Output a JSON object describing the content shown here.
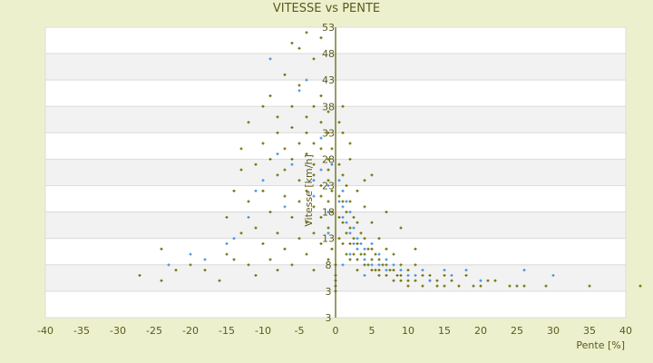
{
  "chart_data": {
    "type": "scatter",
    "title": "VITESSE vs PENTE",
    "xlabel": "Pente [%]",
    "ylabel": "Vitesse [km/h]",
    "xlim": [
      -40,
      40
    ],
    "ylim": [
      -2,
      53
    ],
    "x_ticks": [
      "-40",
      "-35",
      "-30",
      "-25",
      "-20",
      "-15",
      "-10",
      "-5",
      "0",
      "5",
      "10",
      "15",
      "20",
      "25",
      "30",
      "35",
      "40"
    ],
    "y_ticks": [
      "53",
      "48",
      "43",
      "38",
      "33",
      "28",
      "23",
      "18",
      "13",
      "8",
      "3",
      "3"
    ],
    "grid": "alternating horizontal bands",
    "colors": {
      "background": "#ecf0cd",
      "axis": "#5a5a00",
      "band": "#f2f2f2"
    },
    "series": [
      {
        "color": "#6b6b00",
        "marker": "plus",
        "points": [
          [
            -27,
            6
          ],
          [
            -24,
            5
          ],
          [
            -24,
            11
          ],
          [
            -22,
            7
          ],
          [
            -20,
            8
          ],
          [
            -18,
            7
          ],
          [
            -16,
            5
          ],
          [
            -15,
            10
          ],
          [
            -15,
            17
          ],
          [
            -14,
            22
          ],
          [
            -14,
            9
          ],
          [
            -13,
            14
          ],
          [
            -13,
            26
          ],
          [
            -13,
            30
          ],
          [
            -12,
            20
          ],
          [
            -12,
            8
          ],
          [
            -12,
            35
          ],
          [
            -11,
            27
          ],
          [
            -11,
            15
          ],
          [
            -11,
            6
          ],
          [
            -10,
            38
          ],
          [
            -10,
            22
          ],
          [
            -10,
            31
          ],
          [
            -10,
            12
          ],
          [
            -9,
            40
          ],
          [
            -9,
            28
          ],
          [
            -9,
            18
          ],
          [
            -9,
            9
          ],
          [
            -8,
            33
          ],
          [
            -8,
            25
          ],
          [
            -8,
            36
          ],
          [
            -8,
            14
          ],
          [
            -8,
            7
          ],
          [
            -7,
            44
          ],
          [
            -7,
            30
          ],
          [
            -7,
            21
          ],
          [
            -7,
            26
          ],
          [
            -7,
            11
          ],
          [
            -6,
            50
          ],
          [
            -6,
            38
          ],
          [
            -6,
            28
          ],
          [
            -6,
            17
          ],
          [
            -6,
            34
          ],
          [
            -6,
            8
          ],
          [
            -5,
            49
          ],
          [
            -5,
            42
          ],
          [
            -5,
            31
          ],
          [
            -5,
            24
          ],
          [
            -5,
            20
          ],
          [
            -5,
            13
          ],
          [
            -4,
            52
          ],
          [
            -4,
            36
          ],
          [
            -4,
            29
          ],
          [
            -4,
            33
          ],
          [
            -4,
            22
          ],
          [
            -4,
            16
          ],
          [
            -4,
            10
          ],
          [
            -3,
            47
          ],
          [
            -3,
            38
          ],
          [
            -3,
            31
          ],
          [
            -3,
            27
          ],
          [
            -3,
            25
          ],
          [
            -3,
            19
          ],
          [
            -3,
            14
          ],
          [
            -3,
            7
          ],
          [
            -2,
            51
          ],
          [
            -2,
            40
          ],
          [
            -2,
            35
          ],
          [
            -2,
            30
          ],
          [
            -2,
            23
          ],
          [
            -2,
            21
          ],
          [
            -2,
            17
          ],
          [
            -2,
            12
          ],
          [
            -1,
            37
          ],
          [
            -1,
            33
          ],
          [
            -1,
            28
          ],
          [
            -1,
            26
          ],
          [
            -1,
            24
          ],
          [
            -1,
            20
          ],
          [
            -1,
            15
          ],
          [
            -1,
            9
          ],
          [
            -0.5,
            30
          ],
          [
            -0.5,
            22
          ],
          [
            -0.5,
            18
          ],
          [
            -0.5,
            11
          ],
          [
            0,
            5
          ],
          [
            0,
            4
          ],
          [
            0,
            6
          ],
          [
            0,
            8
          ],
          [
            0,
            3
          ],
          [
            0.5,
            27
          ],
          [
            0.5,
            21
          ],
          [
            0.5,
            17
          ],
          [
            0.5,
            13
          ],
          [
            1,
            33
          ],
          [
            1,
            25
          ],
          [
            1,
            20
          ],
          [
            1,
            16
          ],
          [
            1,
            12
          ],
          [
            1.5,
            23
          ],
          [
            1.5,
            18
          ],
          [
            1.5,
            14
          ],
          [
            1.5,
            10
          ],
          [
            2,
            28
          ],
          [
            2,
            20
          ],
          [
            2,
            15
          ],
          [
            2,
            12
          ],
          [
            2,
            9
          ],
          [
            2.5,
            17
          ],
          [
            2.5,
            13
          ],
          [
            2.5,
            10
          ],
          [
            3,
            22
          ],
          [
            3,
            16
          ],
          [
            3,
            12
          ],
          [
            3,
            9
          ],
          [
            3,
            7
          ],
          [
            3.5,
            14
          ],
          [
            3.5,
            10
          ],
          [
            4,
            19
          ],
          [
            4,
            13
          ],
          [
            4,
            10
          ],
          [
            4,
            8
          ],
          [
            4.5,
            11
          ],
          [
            4.5,
            8
          ],
          [
            5,
            16
          ],
          [
            5,
            11
          ],
          [
            5,
            9
          ],
          [
            5,
            7
          ],
          [
            5.5,
            10
          ],
          [
            5.5,
            7
          ],
          [
            6,
            13
          ],
          [
            6,
            9
          ],
          [
            6,
            7
          ],
          [
            6,
            6
          ],
          [
            6.5,
            8
          ],
          [
            7,
            11
          ],
          [
            7,
            8
          ],
          [
            7,
            6
          ],
          [
            7.5,
            7
          ],
          [
            8,
            10
          ],
          [
            8,
            7
          ],
          [
            8,
            5
          ],
          [
            8.5,
            6
          ],
          [
            9,
            8
          ],
          [
            9,
            6
          ],
          [
            9,
            5
          ],
          [
            10,
            7
          ],
          [
            10,
            5
          ],
          [
            10,
            4
          ],
          [
            11,
            8
          ],
          [
            11,
            5
          ],
          [
            12,
            6
          ],
          [
            12,
            4
          ],
          [
            13,
            5
          ],
          [
            13,
            6
          ],
          [
            14,
            5
          ],
          [
            14,
            4
          ],
          [
            15,
            6
          ],
          [
            15,
            4
          ],
          [
            16,
            5
          ],
          [
            17,
            4
          ],
          [
            18,
            6
          ],
          [
            19,
            4
          ],
          [
            20,
            4
          ],
          [
            21,
            5
          ],
          [
            22,
            5
          ],
          [
            24,
            4
          ],
          [
            25,
            4
          ],
          [
            26,
            4
          ],
          [
            29,
            4
          ],
          [
            35,
            4
          ],
          [
            42,
            4
          ],
          [
            0.5,
            35
          ],
          [
            1,
            38
          ],
          [
            2,
            31
          ],
          [
            5,
            25
          ],
          [
            4,
            24
          ],
          [
            7,
            18
          ],
          [
            9,
            15
          ],
          [
            11,
            11
          ]
        ]
      },
      {
        "color": "#3a8ee0",
        "marker": "plus",
        "points": [
          [
            -23,
            8
          ],
          [
            -20,
            10
          ],
          [
            -18,
            9
          ],
          [
            -15,
            12
          ],
          [
            -14,
            13
          ],
          [
            -12,
            17
          ],
          [
            -11,
            22
          ],
          [
            -10,
            24
          ],
          [
            -9,
            47
          ],
          [
            -8,
            29
          ],
          [
            -7,
            19
          ],
          [
            -6,
            27
          ],
          [
            -5,
            41
          ],
          [
            -4,
            43
          ],
          [
            -3,
            21
          ],
          [
            -3,
            24
          ],
          [
            -2,
            32
          ],
          [
            -2,
            26
          ],
          [
            -1,
            23
          ],
          [
            -1,
            18
          ],
          [
            -1,
            14
          ],
          [
            0.5,
            24
          ],
          [
            0.5,
            20
          ],
          [
            1,
            22
          ],
          [
            1,
            19
          ],
          [
            1,
            17
          ],
          [
            1.5,
            20
          ],
          [
            1.5,
            16
          ],
          [
            2,
            18
          ],
          [
            2,
            14
          ],
          [
            2.5,
            15
          ],
          [
            2.5,
            12
          ],
          [
            3,
            13
          ],
          [
            3,
            11
          ],
          [
            3.5,
            12
          ],
          [
            4,
            11
          ],
          [
            4,
            9
          ],
          [
            5,
            12
          ],
          [
            5,
            8
          ],
          [
            6,
            10
          ],
          [
            6,
            8
          ],
          [
            7,
            9
          ],
          [
            7,
            7
          ],
          [
            8,
            8
          ],
          [
            9,
            7
          ],
          [
            10,
            6
          ],
          [
            11,
            6
          ],
          [
            12,
            7
          ],
          [
            13,
            5
          ],
          [
            15,
            7
          ],
          [
            16,
            6
          ],
          [
            18,
            7
          ],
          [
            20,
            5
          ],
          [
            26,
            7
          ],
          [
            30,
            6
          ],
          [
            4,
            6
          ],
          [
            2,
            10
          ],
          [
            1,
            8
          ],
          [
            -0.5,
            27
          ]
        ]
      }
    ]
  }
}
